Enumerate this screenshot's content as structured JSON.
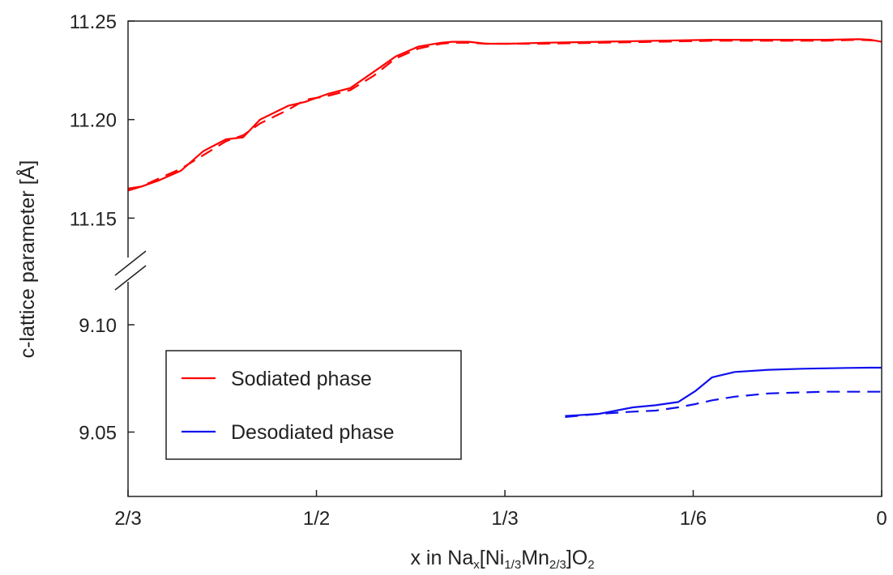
{
  "chart_data": {
    "type": "line",
    "xlabel": {
      "parts": [
        {
          "text": "x in Na",
          "sub": false
        },
        {
          "text": "x",
          "sub": true
        },
        {
          "text": "[Ni",
          "sub": false
        },
        {
          "text": "1/3",
          "sub": true
        },
        {
          "text": "Mn",
          "sub": false
        },
        {
          "text": "2/3",
          "sub": true
        },
        {
          "text": "]O",
          "sub": false
        },
        {
          "text": "2",
          "sub": true
        }
      ]
    },
    "ylabel": "c-lattice parameter [Å]",
    "x_reversed": true,
    "xlim": [
      0,
      0.6667
    ],
    "x_ticks": [
      {
        "value": 0.6667,
        "label": "2/3"
      },
      {
        "value": 0.5,
        "label": "1/2"
      },
      {
        "value": 0.3333,
        "label": "1/3"
      },
      {
        "value": 0.1667,
        "label": "1/6"
      },
      {
        "value": 0,
        "label": "0"
      }
    ],
    "y_axis_broken": true,
    "y_upper_range": [
      11.13,
      11.25
    ],
    "y_lower_range": [
      9.02,
      9.12
    ],
    "y_ticks": [
      {
        "value": 11.25,
        "label": "11.25"
      },
      {
        "value": 11.2,
        "label": "11.20"
      },
      {
        "value": 11.15,
        "label": "11.15"
      },
      {
        "value": 9.1,
        "label": "9.10"
      },
      {
        "value": 9.05,
        "label": "9.05"
      }
    ],
    "legend_position": "bottom-left",
    "series": [
      {
        "name": "Sodiated phase",
        "color": "#ff0000",
        "dash": "solid",
        "x": [
          0.6667,
          0.655,
          0.64,
          0.62,
          0.6,
          0.58,
          0.565,
          0.55,
          0.525,
          0.51,
          0.49,
          0.47,
          0.45,
          0.43,
          0.41,
          0.39,
          0.38,
          0.365,
          0.35,
          0.33,
          0.3,
          0.25,
          0.2,
          0.15,
          0.1,
          0.05,
          0.02,
          0.01,
          0
        ],
        "y": [
          11.165,
          11.166,
          11.169,
          11.174,
          11.184,
          11.19,
          11.191,
          11.2,
          11.207,
          11.209,
          11.213,
          11.216,
          11.224,
          11.232,
          11.237,
          11.239,
          11.2395,
          11.2395,
          11.2385,
          11.2385,
          11.239,
          11.2395,
          11.24,
          11.2405,
          11.2405,
          11.2405,
          11.2408,
          11.2405,
          11.2395
        ]
      },
      {
        "name": "Sodiated phase (dashed)",
        "color": "#ff0000",
        "dash": "dashed",
        "x": [
          0.6667,
          0.655,
          0.64,
          0.62,
          0.6,
          0.58,
          0.565,
          0.55,
          0.525,
          0.51,
          0.49,
          0.47,
          0.45,
          0.43,
          0.41,
          0.39,
          0.38,
          0.365,
          0.35,
          0.33,
          0.3,
          0.25,
          0.2,
          0.15,
          0.1,
          0.05,
          0.02,
          0.01,
          0
        ],
        "y": [
          11.164,
          11.166,
          11.17,
          11.175,
          11.182,
          11.189,
          11.192,
          11.198,
          11.205,
          11.21,
          11.212,
          11.215,
          11.222,
          11.231,
          11.236,
          11.2385,
          11.239,
          11.239,
          11.2385,
          11.2385,
          11.2385,
          11.239,
          11.2395,
          11.24,
          11.24,
          11.24,
          11.2405,
          11.2402,
          11.24
        ]
      },
      {
        "name": "Desodiated phase",
        "color": "#1010ee",
        "dash": "solid",
        "x": [
          0.28,
          0.27,
          0.25,
          0.22,
          0.2,
          0.18,
          0.165,
          0.15,
          0.13,
          0.1,
          0.07,
          0.05,
          0.03,
          0.01,
          0
        ],
        "y": [
          9.0575,
          9.0578,
          9.0585,
          9.0615,
          9.0625,
          9.064,
          9.069,
          9.0755,
          9.078,
          9.079,
          9.0795,
          9.0797,
          9.0799,
          9.08,
          9.08
        ]
      },
      {
        "name": "Desodiated phase (dashed)",
        "color": "#1010ee",
        "dash": "dashed",
        "x": [
          0.28,
          0.27,
          0.25,
          0.22,
          0.2,
          0.18,
          0.165,
          0.15,
          0.13,
          0.1,
          0.07,
          0.05,
          0.03,
          0.01,
          0
        ],
        "y": [
          9.057,
          9.0575,
          9.0585,
          9.0595,
          9.06,
          9.0615,
          9.063,
          9.0648,
          9.0665,
          9.068,
          9.0685,
          9.0688,
          9.0688,
          9.0688,
          9.0688
        ]
      }
    ]
  },
  "legend": {
    "items": [
      {
        "label": "Sodiated phase",
        "color": "#ff0000"
      },
      {
        "label": "Desodiated phase",
        "color": "#1010ee"
      }
    ]
  }
}
